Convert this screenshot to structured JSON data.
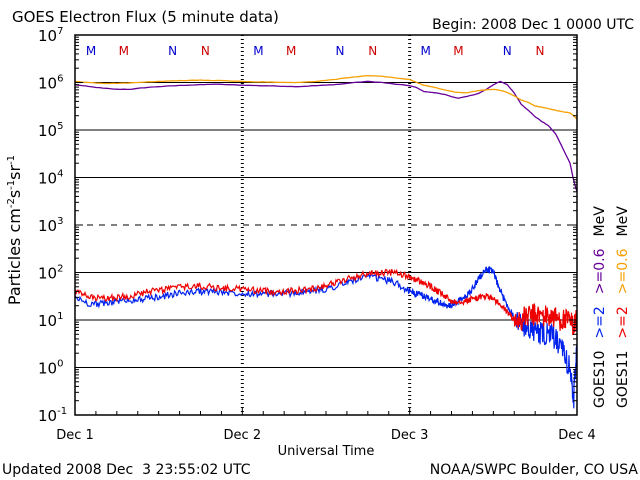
{
  "chart_data": {
    "type": "line",
    "title": "GOES Electron Flux (5 minute data)",
    "begin_label": "Begin: 2008 Dec 1 0000 UTC",
    "xlabel": "Universal Time",
    "ylabel": "Particles cm",
    "ylabel_exp1": "-2",
    "ylabel_mid": "s",
    "ylabel_exp2": "-1",
    "ylabel_end": "sr",
    "ylabel_exp3": "-1",
    "yscale": "log",
    "ylim": [
      0.1,
      10000000
    ],
    "xlim": [
      0,
      72
    ],
    "x_unit": "hours since 2008-12-01 00:00 UTC",
    "x_ticks": [
      {
        "x": 0,
        "label": "Dec 1"
      },
      {
        "x": 24,
        "label": "Dec 2"
      },
      {
        "x": 48,
        "label": "Dec 3"
      },
      {
        "x": 72,
        "label": "Dec 4"
      }
    ],
    "y_ticks": [
      {
        "base": "10",
        "exp": "7",
        "value": 10000000
      },
      {
        "base": "10",
        "exp": "6",
        "value": 1000000
      },
      {
        "base": "10",
        "exp": "5",
        "value": 100000
      },
      {
        "base": "10",
        "exp": "4",
        "value": 10000
      },
      {
        "base": "10",
        "exp": "3",
        "value": 1000
      },
      {
        "base": "10",
        "exp": "2",
        "value": 100
      },
      {
        "base": "10",
        "exp": "1",
        "value": 10
      },
      {
        "base": "10",
        "exp": "0",
        "value": 1
      },
      {
        "base": "10",
        "exp": "-1",
        "value": 0.1
      }
    ],
    "gridlines": [
      {
        "value": 1000000,
        "style": "solid"
      },
      {
        "value": 100000,
        "style": "solid"
      },
      {
        "value": 10000,
        "style": "solid"
      },
      {
        "value": 1000,
        "style": "dashed"
      },
      {
        "value": 100,
        "style": "solid"
      },
      {
        "value": 10,
        "style": "solid"
      },
      {
        "value": 1,
        "style": "solid"
      }
    ],
    "mn_markers": [
      {
        "x": 2.3,
        "label": "M",
        "color": "#0000cc"
      },
      {
        "x": 7.0,
        "label": "M",
        "color": "#cc0000"
      },
      {
        "x": 14.0,
        "label": "N",
        "color": "#0000cc"
      },
      {
        "x": 18.7,
        "label": "N",
        "color": "#cc0000"
      },
      {
        "x": 26.3,
        "label": "M",
        "color": "#0000cc"
      },
      {
        "x": 31.0,
        "label": "M",
        "color": "#cc0000"
      },
      {
        "x": 38.0,
        "label": "N",
        "color": "#0000cc"
      },
      {
        "x": 42.7,
        "label": "N",
        "color": "#cc0000"
      },
      {
        "x": 50.3,
        "label": "M",
        "color": "#0000cc"
      },
      {
        "x": 55.0,
        "label": "M",
        "color": "#cc0000"
      },
      {
        "x": 62.0,
        "label": "N",
        "color": "#0000cc"
      },
      {
        "x": 66.7,
        "label": "N",
        "color": "#cc0000"
      }
    ],
    "series": [
      {
        "name": "GOES10 >=0.6 MeV",
        "color": "#660099",
        "x": [
          0,
          2,
          4,
          6,
          8,
          10,
          12,
          14,
          16,
          18,
          20,
          22,
          24,
          26,
          28,
          30,
          32,
          34,
          36,
          38,
          40,
          42,
          44,
          46,
          48,
          49,
          50,
          51,
          52,
          53,
          54,
          55,
          56,
          57,
          58,
          59,
          60,
          61,
          62,
          63,
          64,
          65,
          66,
          67,
          68,
          69,
          70,
          71,
          71.5,
          72
        ],
        "values": [
          900000,
          820000,
          760000,
          720000,
          720000,
          780000,
          820000,
          850000,
          880000,
          900000,
          920000,
          900000,
          880000,
          860000,
          850000,
          830000,
          820000,
          850000,
          880000,
          920000,
          1000000,
          1050000,
          1000000,
          920000,
          860000,
          780000,
          650000,
          620000,
          600000,
          560000,
          500000,
          470000,
          500000,
          540000,
          600000,
          720000,
          900000,
          1050000,
          900000,
          600000,
          350000,
          260000,
          190000,
          150000,
          120000,
          80000,
          40000,
          20000,
          9000,
          5000
        ]
      },
      {
        "name": "GOES11 >=0.6 MeV",
        "color": "#f5a000",
        "x": [
          0,
          2,
          4,
          6,
          8,
          10,
          12,
          14,
          16,
          18,
          20,
          22,
          24,
          26,
          28,
          30,
          32,
          34,
          36,
          38,
          40,
          42,
          44,
          46,
          48,
          49,
          50,
          51,
          52,
          53,
          54,
          55,
          56,
          57,
          58,
          59,
          60,
          61,
          62,
          63,
          64,
          65,
          66,
          67,
          68,
          69,
          70,
          71,
          71.5,
          72
        ],
        "values": [
          1050000,
          1000000,
          960000,
          960000,
          980000,
          1020000,
          1050000,
          1080000,
          1100000,
          1120000,
          1100000,
          1080000,
          1050000,
          1030000,
          1020000,
          1000000,
          1000000,
          1040000,
          1100000,
          1200000,
          1300000,
          1400000,
          1350000,
          1250000,
          1150000,
          1000000,
          880000,
          820000,
          760000,
          700000,
          650000,
          620000,
          600000,
          640000,
          680000,
          700000,
          720000,
          680000,
          620000,
          520000,
          430000,
          380000,
          320000,
          300000,
          280000,
          260000,
          240000,
          230000,
          200000,
          170000
        ]
      },
      {
        "name": "GOES10 >=2 MeV",
        "color": "#0022ee",
        "x": [
          0,
          2,
          4,
          6,
          8,
          10,
          12,
          14,
          16,
          18,
          20,
          22,
          24,
          26,
          28,
          30,
          32,
          34,
          36,
          38,
          40,
          42,
          44,
          46,
          48,
          49,
          50,
          51,
          52,
          53,
          54,
          55,
          56,
          57,
          58,
          59,
          60,
          61,
          62,
          63,
          64,
          65,
          66,
          67,
          68,
          69,
          70,
          71,
          71.5,
          72
        ],
        "values": [
          30,
          22,
          22,
          25,
          26,
          28,
          30,
          35,
          38,
          40,
          40,
          38,
          37,
          36,
          35,
          36,
          38,
          40,
          45,
          55,
          70,
          80,
          75,
          60,
          40,
          35,
          32,
          28,
          25,
          20,
          20,
          25,
          30,
          45,
          80,
          120,
          100,
          40,
          20,
          12,
          8,
          7,
          6,
          5,
          5,
          4,
          2,
          1,
          0.2,
          3
        ]
      },
      {
        "name": "GOES11 >=2 MeV",
        "color": "#ee0000",
        "x": [
          0,
          2,
          4,
          6,
          8,
          10,
          12,
          14,
          16,
          18,
          20,
          22,
          24,
          26,
          28,
          30,
          32,
          34,
          36,
          38,
          40,
          42,
          44,
          46,
          48,
          49,
          50,
          51,
          52,
          53,
          54,
          55,
          56,
          57,
          58,
          59,
          60,
          61,
          62,
          63,
          64,
          65,
          66,
          67,
          68,
          69,
          70,
          71,
          71.5,
          72
        ],
        "values": [
          40,
          30,
          28,
          30,
          32,
          38,
          42,
          48,
          50,
          52,
          48,
          46,
          45,
          42,
          40,
          40,
          42,
          45,
          55,
          65,
          80,
          95,
          100,
          100,
          80,
          70,
          60,
          50,
          40,
          32,
          25,
          25,
          25,
          28,
          30,
          32,
          28,
          20,
          15,
          10,
          10,
          12,
          13,
          12,
          12,
          11,
          10,
          9,
          8,
          10
        ]
      }
    ],
    "right_legend": [
      {
        "lines": [
          {
            "text": "GOES10",
            "color": "#000000"
          },
          {
            "text": ">=2",
            "color": "#0022ee"
          },
          {
            "text": ">=0.6",
            "color": "#660099"
          },
          {
            "text": "MeV",
            "color": "#000000"
          }
        ]
      },
      {
        "lines": [
          {
            "text": "GOES11",
            "color": "#000000"
          },
          {
            "text": ">=2",
            "color": "#ee0000"
          },
          {
            "text": ">=0.6",
            "color": "#f5a000"
          },
          {
            "text": "MeV",
            "color": "#000000"
          }
        ]
      }
    ],
    "footer_left": "Updated 2008 Dec  3 23:55:02 UTC",
    "footer_right": "NOAA/SWPC Boulder, CO USA"
  }
}
